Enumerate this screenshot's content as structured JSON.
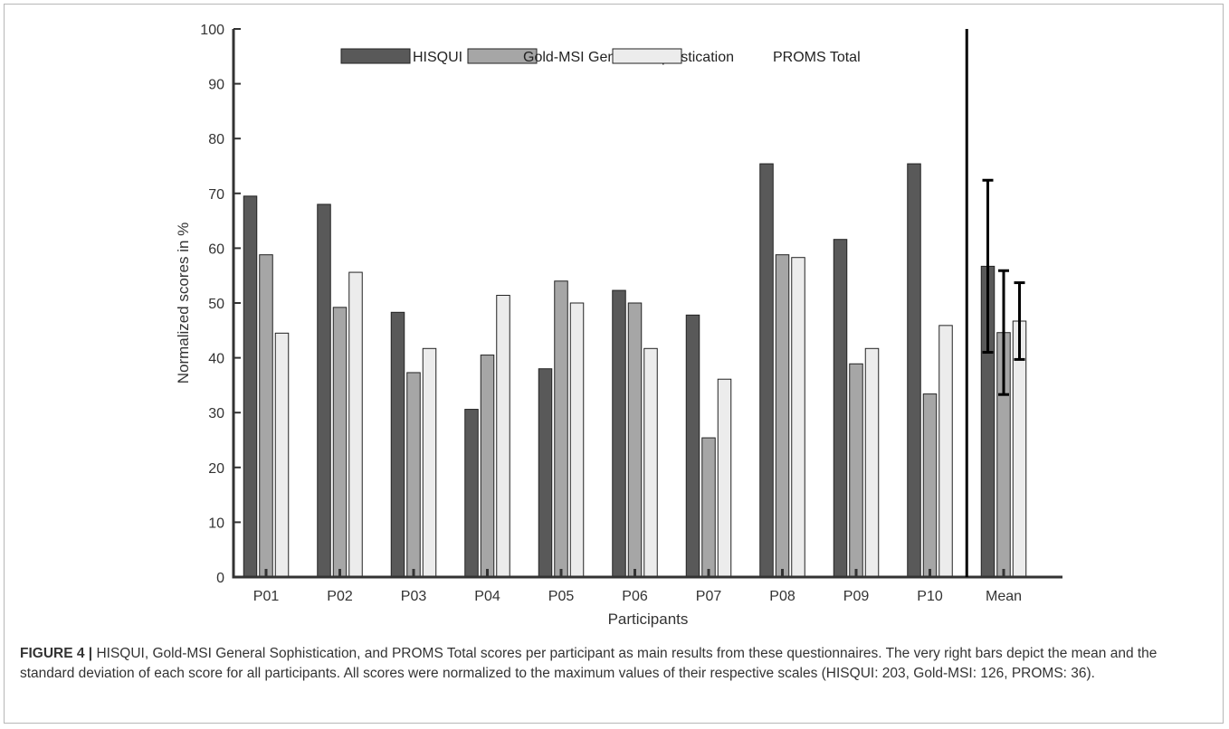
{
  "caption": {
    "label": "FIGURE 4 |",
    "text": "HISQUI, Gold-MSI General Sophistication, and PROMS Total scores per participant as main results from these questionnaires. The very right bars depict the mean and the standard deviation of each score for all participants. All scores were normalized to the maximum values of their respective scales (HISQUI: 203, Gold-MSI: 126, PROMS: 36)."
  },
  "chart_data": {
    "type": "bar",
    "title": "",
    "xlabel": "Participants",
    "ylabel": "Normalized scores in %",
    "ylim": [
      0,
      100
    ],
    "yticks": [
      0,
      10,
      20,
      30,
      40,
      50,
      60,
      70,
      80,
      90,
      100
    ],
    "grid": false,
    "legend_position": "top",
    "categories": [
      "P01",
      "P02",
      "P03",
      "P04",
      "P05",
      "P06",
      "P07",
      "P08",
      "P09",
      "P10",
      "Mean"
    ],
    "series": [
      {
        "name": "HISQUI",
        "color": "#595959",
        "values": [
          69.5,
          68,
          48.3,
          30.6,
          38,
          52.3,
          47.8,
          75.4,
          61.6,
          75.4,
          56.7
        ],
        "error": [
          null,
          null,
          null,
          null,
          null,
          null,
          null,
          null,
          null,
          null,
          15.7
        ]
      },
      {
        "name": "Gold-MSI General Sophistication",
        "color": "#a6a6a6",
        "values": [
          58.8,
          49.2,
          37.3,
          40.5,
          54,
          50,
          25.4,
          58.8,
          38.9,
          33.4,
          44.6
        ],
        "error": [
          null,
          null,
          null,
          null,
          null,
          null,
          null,
          null,
          null,
          null,
          11.3
        ]
      },
      {
        "name": "PROMS Total",
        "color": "#ececec",
        "values": [
          44.5,
          55.6,
          41.7,
          51.4,
          50,
          41.7,
          36.1,
          58.3,
          41.7,
          45.9,
          46.7
        ],
        "error": [
          null,
          null,
          null,
          null,
          null,
          null,
          null,
          null,
          null,
          null,
          7
        ]
      }
    ]
  }
}
